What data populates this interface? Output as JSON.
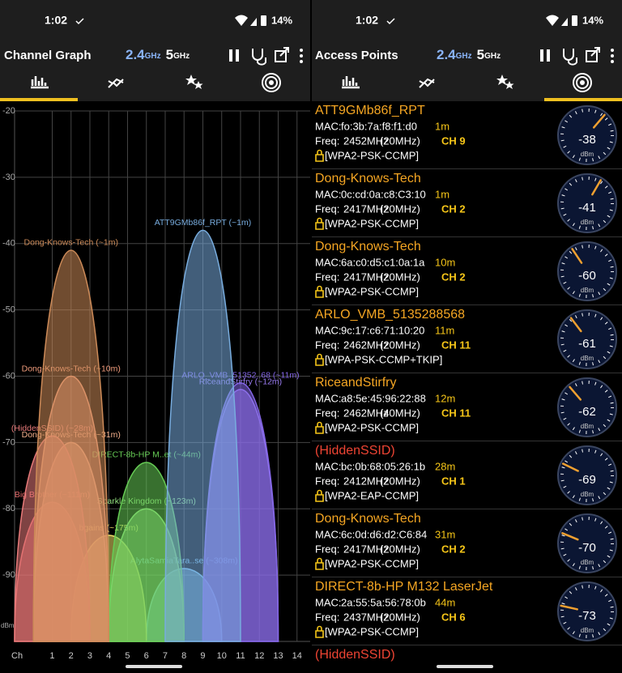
{
  "status": {
    "time": "1:02",
    "battery": "14%"
  },
  "bands": {
    "b24": "2.4",
    "b24_unit": "GHz",
    "b5": "5",
    "b5_unit": "GHz"
  },
  "left": {
    "title": "Channel Graph"
  },
  "chart_data": {
    "type": "area",
    "x_label": "Ch",
    "y_label": "dBm",
    "xlim": [
      -1,
      14.7
    ],
    "xticks": [
      1,
      2,
      3,
      4,
      5,
      6,
      7,
      8,
      9,
      10,
      11,
      12,
      13,
      14
    ],
    "ylim": [
      -100,
      -20
    ],
    "yticks": [
      -20,
      -30,
      -40,
      -50,
      -60,
      -70,
      -80,
      -90
    ],
    "grid": true,
    "series": [
      {
        "name": "AlytaSamiaTara..se (~308m)",
        "color": "#7cc4ee",
        "channel": 8,
        "value": -89
      },
      {
        "name": "bgains (~175m)",
        "color": "#eedd66",
        "channel": 4,
        "value": -84
      },
      {
        "name": "Sparkle Kingdom (~123m)",
        "color": "#92e07e",
        "channel": 6,
        "value": -80
      },
      {
        "name": "Big Brother (~111m)",
        "color": "#e06868",
        "channel": 1,
        "value": -79
      },
      {
        "name": "DIRECT-8b-HP M..et (~44m)",
        "color": "#66cc55",
        "channel": 6,
        "value": -73
      },
      {
        "name": "Dong-Knows-Tech (~31m)",
        "color": "#f4b08c",
        "channel": 2,
        "value": -70
      },
      {
        "name": "(HiddenSSID) (~28m)",
        "color": "#e87a7a",
        "channel": 1,
        "value": -69
      },
      {
        "name": "RiceandStirfry (~12m)",
        "color": "#9a7cf2",
        "channel": 11,
        "value": -62
      },
      {
        "name": "ARLO_VMB_51352..68 (~11m)",
        "color": "#8466e6",
        "channel": 11,
        "value": -61
      },
      {
        "name": "Dong-Knows-Tech (~10m)",
        "color": "#f09c7c",
        "channel": 2,
        "value": -60
      },
      {
        "name": "Dong-Knows-Tech (~1m)",
        "color": "#cc8a58",
        "channel": 2,
        "value": -41
      },
      {
        "name": "ATT9GMb86f_RPT (~1m)",
        "color": "#78acde",
        "channel": 9,
        "value": -38
      }
    ]
  },
  "right": {
    "title": "Access Points",
    "labels": {
      "mac": "MAC:",
      "freq": "Freq:"
    },
    "gauge_unit": "dBm",
    "gauge_lim": [
      -90,
      -10
    ],
    "items": [
      {
        "ssid": "ATT9GMb86f_RPT",
        "mac": "fo:3b:7a:f8:f1:d0",
        "distance": "1m",
        "freq": "2452MHz",
        "width": "(20MHz)",
        "channel": "CH 9",
        "security": "[WPA2-PSK-CCMP]",
        "signal": -38
      },
      {
        "ssid": "Dong-Knows-Tech",
        "mac": "0c:cd:0a:c8:C3:10",
        "distance": "1m",
        "freq": "2417MHz",
        "width": "(20MHz)",
        "channel": "CH 2",
        "security": "[WPA2-PSK-CCMP]",
        "signal": -41
      },
      {
        "ssid": "Dong-Knows-Tech",
        "mac": "6a:c0:d5:c1:0a:1a",
        "distance": "10m",
        "freq": "2417MHz",
        "width": "(20MHz)",
        "channel": "CH 2",
        "security": "[WPA2-PSK-CCMP]",
        "signal": -60
      },
      {
        "ssid": "ARLO_VMB_5135288568",
        "mac": "9c:17:c6:71:10:20",
        "distance": "11m",
        "freq": "2462MHz",
        "width": "(20MHz)",
        "channel": "CH 11",
        "security": "[WPA-PSK-CCMP+TKIP]",
        "signal": -61
      },
      {
        "ssid": "RiceandStirfry",
        "mac": "a8:5e:45:96:22:88",
        "distance": "12m",
        "freq": "2462MHz",
        "width": "(40MHz)",
        "channel": "CH 11",
        "security": "[WPA2-PSK-CCMP]",
        "signal": -62
      },
      {
        "ssid": "(HiddenSSID)",
        "hidden": true,
        "mac": "bc:0b:68:05:26:1b",
        "distance": "28m",
        "freq": "2412MHz",
        "width": "(20MHz)",
        "channel": "CH 1",
        "security": "[WPA2-EAP-CCMP]",
        "signal": -69
      },
      {
        "ssid": "Dong-Knows-Tech",
        "mac": "6c:0d:d6:d2:C6:84",
        "distance": "31m",
        "freq": "2417MHz",
        "width": "(20MHz)",
        "channel": "CH 2",
        "security": "[WPA2-PSK-CCMP]",
        "signal": -70
      },
      {
        "ssid": "DIRECT-8b-HP M132 LaserJet",
        "mac": "2a:55:5a:56:78:0b",
        "distance": "44m",
        "freq": "2437MHz",
        "width": "(20MHz)",
        "channel": "CH 6",
        "security": "[WPA2-PSK-CCMP]",
        "signal": -73
      },
      {
        "ssid": "(HiddenSSID)",
        "hidden": true
      }
    ]
  }
}
